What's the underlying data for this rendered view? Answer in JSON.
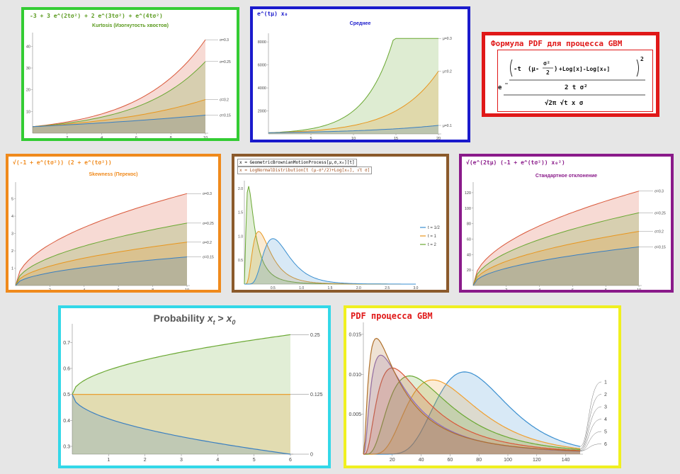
{
  "panels": {
    "kurtosis": {
      "formula": "-3 + 3 e^(2tσ²) + 2 e^(3tσ²) + e^(4tσ²)",
      "subtitle": "Kurtosis (Изогнутость хвостов)",
      "color": "#33cc33",
      "text_color": "#5a9a1e"
    },
    "mean": {
      "formula": "e^(tμ) x₀",
      "subtitle": "Среднее",
      "color": "#1a1acc",
      "text_color": "#1a1acc"
    },
    "pdf_formula": {
      "title": "Формула PDF для процесса GBM",
      "color": "#e01818",
      "numerator_parts": [
        "-t",
        "(μ-",
        "σ²",
        "2",
        ")",
        "+Log[x]-Log[x₀]",
        "2"
      ],
      "denominator": "2 t σ²",
      "outer_denominator": "√2π √t x σ",
      "base": "e"
    },
    "skewness": {
      "formula": "√(-1 + e^(tσ²)) (2 + e^(tσ²))",
      "subtitle": "Skewness (Перекос)",
      "color": "#f08a1c",
      "text_color": "#f08a1c"
    },
    "lognormal": {
      "line1": "x ≈ GeometricBrownianMotionProcess[μ,σ,x₀][t]",
      "line2": "x ≈ LogNormalDistribution[t (μ-σ²/2)+Log[x₀], √t σ]",
      "color": "#8b5a2b"
    },
    "stdev": {
      "formula": "√(e^(2tμ) (-1 + e^(tσ²)) x₀²)",
      "subtitle": "Стандартное отклонение",
      "color": "#8a1a8a",
      "text_color": "#8a1a8a"
    },
    "probability": {
      "title_prefix": "Probability",
      "title_expr": "x",
      "title_sub_t": "t",
      "title_gt": ">",
      "title_x0": "x",
      "title_sub_0": "0",
      "color": "#33d8e8"
    },
    "gbm_pdf": {
      "title": "PDF процесса GBM",
      "color": "#f0f020",
      "title_color": "#e01818"
    }
  },
  "chart_data": [
    {
      "id": "kurtosis",
      "type": "area",
      "x": [
        0,
        10
      ],
      "xticks": [
        "2",
        "4",
        "6",
        "8",
        "10"
      ],
      "yticks": [
        "10",
        "20",
        "30",
        "40"
      ],
      "ylim": [
        0,
        45
      ],
      "series": [
        {
          "name": "σ=0.15",
          "end": 8.3,
          "color": "#3a7fc1"
        },
        {
          "name": "σ=0.2",
          "end": 15.5,
          "color": "#e8961e"
        },
        {
          "name": "σ=0.25",
          "end": 33,
          "color": "#6aa832"
        },
        {
          "name": "σ=0.3",
          "end": 43,
          "color": "#d9583a"
        }
      ]
    },
    {
      "id": "mean",
      "type": "area",
      "x": [
        0,
        20
      ],
      "xticks": [
        "5",
        "10",
        "15",
        "20"
      ],
      "yticks": [
        "2000",
        "4000",
        "6000",
        "8000"
      ],
      "ylim": [
        0,
        8500
      ],
      "series": [
        {
          "name": "μ=0.1",
          "end": 738,
          "color": "#3a7fc1"
        },
        {
          "name": "μ=0.2",
          "end": 5460,
          "color": "#e8961e"
        },
        {
          "name": "μ=0.3",
          "end": 8300,
          "color": "#6aa832"
        }
      ]
    },
    {
      "id": "skewness",
      "type": "area",
      "x": [
        0,
        10
      ],
      "xticks": [
        "2",
        "4",
        "6",
        "8",
        "10"
      ],
      "yticks": [
        "1",
        "2",
        "3",
        "4",
        "5"
      ],
      "ylim": [
        0,
        5.8
      ],
      "series": [
        {
          "name": "σ=0.15",
          "end": 1.65,
          "color": "#3a7fc1"
        },
        {
          "name": "σ=0.2",
          "end": 2.5,
          "color": "#e8961e"
        },
        {
          "name": "σ=0.25",
          "end": 3.6,
          "color": "#6aa832"
        },
        {
          "name": "σ=0.3",
          "end": 5.3,
          "color": "#d9583a"
        }
      ]
    },
    {
      "id": "lognormal",
      "type": "area",
      "x": [
        0,
        3
      ],
      "xticks": [
        "0.5",
        "1.0",
        "1.5",
        "2.0",
        "2.5",
        "3.0"
      ],
      "yticks": [
        "0.5",
        "1.0",
        "1.5",
        "2.0"
      ],
      "ylim": [
        0,
        2.1
      ],
      "series": [
        {
          "name": "t = 1/2",
          "peak_x": 0.5,
          "peak_y": 0.95,
          "color": "#3a8fd0"
        },
        {
          "name": "t = 1",
          "peak_x": 0.25,
          "peak_y": 1.1,
          "color": "#e8961e"
        },
        {
          "name": "t = 2",
          "peak_x": 0.07,
          "peak_y": 2.05,
          "color": "#6aa832"
        }
      ]
    },
    {
      "id": "stdev",
      "type": "area",
      "x": [
        0,
        10
      ],
      "xticks": [
        "2",
        "4",
        "6",
        "8",
        "10"
      ],
      "yticks": [
        "20",
        "40",
        "60",
        "80",
        "100",
        "120"
      ],
      "ylim": [
        0,
        130
      ],
      "series": [
        {
          "name": "σ=0.15",
          "end": 50,
          "color": "#3a7fc1"
        },
        {
          "name": "σ=0.2",
          "end": 70,
          "color": "#e8961e"
        },
        {
          "name": "σ=0.25",
          "end": 94,
          "color": "#6aa832"
        },
        {
          "name": "σ=0.3",
          "end": 122,
          "color": "#d9583a"
        }
      ]
    },
    {
      "id": "probability",
      "type": "area",
      "x": [
        0,
        6
      ],
      "xticks": [
        "1",
        "2",
        "3",
        "4",
        "5",
        "6"
      ],
      "yticks": [
        "0.3",
        "0.4",
        "0.5",
        "0.6",
        "0.7"
      ],
      "ylim": [
        0.27,
        0.75
      ],
      "series": [
        {
          "name": "0.25",
          "start": 0.5,
          "end": 0.73,
          "color": "#6aa832"
        },
        {
          "name": "0.125",
          "start": 0.5,
          "end": 0.5,
          "color": "#e8961e"
        },
        {
          "name": "0",
          "start": 0.5,
          "end": 0.27,
          "color": "#3a7fc1"
        }
      ]
    },
    {
      "id": "gbm_pdf",
      "type": "area",
      "x": [
        0,
        150
      ],
      "xticks": [
        "20",
        "40",
        "60",
        "80",
        "100",
        "120",
        "140"
      ],
      "yticks": [
        "0.005",
        "0.010",
        "0.015"
      ],
      "ylim": [
        0,
        0.0165
      ],
      "series": [
        {
          "name": "1",
          "peak_x": 70,
          "peak_y": 0.0103,
          "color": "#3a8fd0"
        },
        {
          "name": "2",
          "peak_x": 48,
          "peak_y": 0.0093,
          "color": "#f0a030"
        },
        {
          "name": "3",
          "peak_x": 32,
          "peak_y": 0.0098,
          "color": "#6aa832"
        },
        {
          "name": "4",
          "peak_x": 20,
          "peak_y": 0.0108,
          "color": "#d9583a"
        },
        {
          "name": "5",
          "peak_x": 12,
          "peak_y": 0.0124,
          "color": "#8b6cc0"
        },
        {
          "name": "6",
          "peak_x": 9,
          "peak_y": 0.0145,
          "color": "#b0702a"
        }
      ]
    }
  ]
}
